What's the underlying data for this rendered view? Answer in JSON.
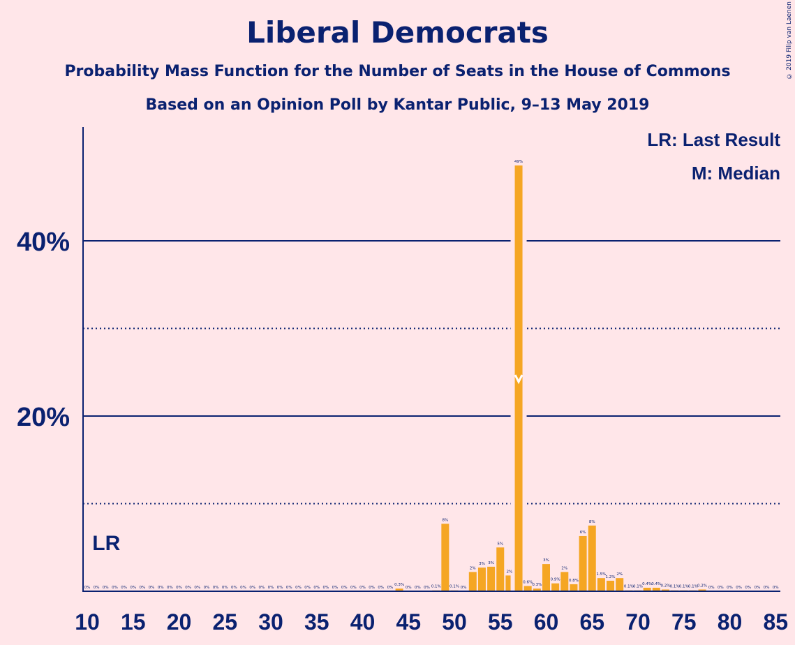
{
  "header": {
    "title": "Liberal Democrats",
    "subtitle1": "Probability Mass Function for the Number of Seats in the House of Commons",
    "subtitle2": "Based on an Opinion Poll by Kantar Public, 9–13 May 2019",
    "copyright": "© 2019 Filip van Laenen"
  },
  "legend": {
    "lr": "LR: Last Result",
    "m": "M: Median"
  },
  "chart_data": {
    "type": "bar",
    "xlabel": "",
    "ylabel": "",
    "xlim": [
      10,
      85
    ],
    "ylim": [
      0,
      52
    ],
    "x_ticks": [
      10,
      15,
      20,
      25,
      30,
      35,
      40,
      45,
      50,
      55,
      60,
      65,
      70,
      75,
      80,
      85
    ],
    "y_ticks_major": [
      {
        "value": 20,
        "label": "20%"
      },
      {
        "value": 40,
        "label": "40%"
      }
    ],
    "y_ticks_minor": [
      10,
      30
    ],
    "last_result": {
      "seat": 12,
      "label": "LR"
    },
    "median": {
      "seat": 57
    },
    "colors": {
      "bar": "#f5a623",
      "axis": "#0a2170",
      "background": "#ffe6e9"
    },
    "bars": [
      {
        "x": 10,
        "value": 0,
        "label": "0%"
      },
      {
        "x": 11,
        "value": 0,
        "label": "0%"
      },
      {
        "x": 12,
        "value": 0,
        "label": "0%"
      },
      {
        "x": 13,
        "value": 0,
        "label": "0%"
      },
      {
        "x": 14,
        "value": 0,
        "label": "0%"
      },
      {
        "x": 15,
        "value": 0,
        "label": "0%"
      },
      {
        "x": 16,
        "value": 0,
        "label": "0%"
      },
      {
        "x": 17,
        "value": 0,
        "label": "0%"
      },
      {
        "x": 18,
        "value": 0,
        "label": "0%"
      },
      {
        "x": 19,
        "value": 0,
        "label": "0%"
      },
      {
        "x": 20,
        "value": 0,
        "label": "0%"
      },
      {
        "x": 21,
        "value": 0,
        "label": "0%"
      },
      {
        "x": 22,
        "value": 0,
        "label": "0%"
      },
      {
        "x": 23,
        "value": 0,
        "label": "0%"
      },
      {
        "x": 24,
        "value": 0,
        "label": "0%"
      },
      {
        "x": 25,
        "value": 0,
        "label": "0%"
      },
      {
        "x": 26,
        "value": 0,
        "label": "0%"
      },
      {
        "x": 27,
        "value": 0,
        "label": "0%"
      },
      {
        "x": 28,
        "value": 0,
        "label": "0%"
      },
      {
        "x": 29,
        "value": 0,
        "label": "0%"
      },
      {
        "x": 30,
        "value": 0,
        "label": "0%"
      },
      {
        "x": 31,
        "value": 0,
        "label": "0%"
      },
      {
        "x": 32,
        "value": 0,
        "label": "0%"
      },
      {
        "x": 33,
        "value": 0,
        "label": "0%"
      },
      {
        "x": 34,
        "value": 0,
        "label": "0%"
      },
      {
        "x": 35,
        "value": 0,
        "label": "0%"
      },
      {
        "x": 36,
        "value": 0,
        "label": "0%"
      },
      {
        "x": 37,
        "value": 0,
        "label": "0%"
      },
      {
        "x": 38,
        "value": 0,
        "label": "0%"
      },
      {
        "x": 39,
        "value": 0,
        "label": "0%"
      },
      {
        "x": 40,
        "value": 0,
        "label": "0%"
      },
      {
        "x": 41,
        "value": 0,
        "label": "0%"
      },
      {
        "x": 42,
        "value": 0,
        "label": "0%"
      },
      {
        "x": 43,
        "value": 0,
        "label": "0%"
      },
      {
        "x": 44,
        "value": 0.3,
        "label": "0.3%"
      },
      {
        "x": 45,
        "value": 0,
        "label": "0%"
      },
      {
        "x": 46,
        "value": 0,
        "label": "0%"
      },
      {
        "x": 47,
        "value": 0,
        "label": "0%"
      },
      {
        "x": 48,
        "value": 0.1,
        "label": "0.1%"
      },
      {
        "x": 49,
        "value": 7.7,
        "label": "8%"
      },
      {
        "x": 50,
        "value": 0.1,
        "label": "0.1%"
      },
      {
        "x": 51,
        "value": 0,
        "label": "0%"
      },
      {
        "x": 52,
        "value": 2.2,
        "label": "2%"
      },
      {
        "x": 53,
        "value": 2.7,
        "label": "3%"
      },
      {
        "x": 54,
        "value": 2.8,
        "label": "3%"
      },
      {
        "x": 55,
        "value": 5,
        "label": "5%"
      },
      {
        "x": 56,
        "value": 1.8,
        "label": "2%"
      },
      {
        "x": 57,
        "value": 48.6,
        "label": "49%"
      },
      {
        "x": 58,
        "value": 0.6,
        "label": "0.6%"
      },
      {
        "x": 59,
        "value": 0.3,
        "label": "0.3%"
      },
      {
        "x": 60,
        "value": 3.1,
        "label": "3%"
      },
      {
        "x": 61,
        "value": 0.9,
        "label": "0.9%"
      },
      {
        "x": 62,
        "value": 2.2,
        "label": "2%"
      },
      {
        "x": 63,
        "value": 0.8,
        "label": "0.8%"
      },
      {
        "x": 64,
        "value": 6.3,
        "label": "6%"
      },
      {
        "x": 65,
        "value": 7.5,
        "label": "8%"
      },
      {
        "x": 66,
        "value": 1.5,
        "label": "1.5%"
      },
      {
        "x": 67,
        "value": 1.2,
        "label": "1.2%"
      },
      {
        "x": 68,
        "value": 1.5,
        "label": "2%"
      },
      {
        "x": 69,
        "value": 0.1,
        "label": "0.1%"
      },
      {
        "x": 70,
        "value": 0.1,
        "label": "0.1%"
      },
      {
        "x": 71,
        "value": 0.4,
        "label": "0.4%"
      },
      {
        "x": 72,
        "value": 0.4,
        "label": "0.4%"
      },
      {
        "x": 73,
        "value": 0.2,
        "label": "0.2%"
      },
      {
        "x": 74,
        "value": 0.1,
        "label": "0.1%"
      },
      {
        "x": 75,
        "value": 0.1,
        "label": "0.1%"
      },
      {
        "x": 76,
        "value": 0.1,
        "label": "0.1%"
      },
      {
        "x": 77,
        "value": 0.2,
        "label": "0.2%"
      },
      {
        "x": 78,
        "value": 0,
        "label": "0%"
      },
      {
        "x": 79,
        "value": 0,
        "label": "0%"
      },
      {
        "x": 80,
        "value": 0,
        "label": "0%"
      },
      {
        "x": 81,
        "value": 0,
        "label": "0%"
      },
      {
        "x": 82,
        "value": 0,
        "label": "0%"
      },
      {
        "x": 83,
        "value": 0,
        "label": "0%"
      },
      {
        "x": 84,
        "value": 0,
        "label": "0%"
      },
      {
        "x": 85,
        "value": 0,
        "label": "0%"
      }
    ]
  }
}
